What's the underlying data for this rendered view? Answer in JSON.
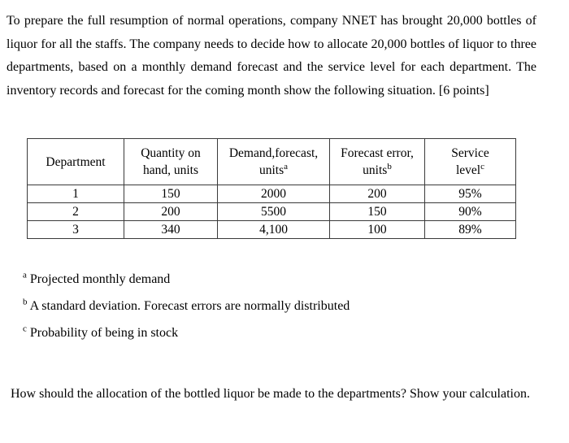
{
  "document": {
    "intro": "To prepare the full resumption of normal operations, company NNET has brought 20,000 bottles of liquor for all the staffs. The company needs to decide how to allocate 20,000 bottles of liquor to three departments, based on a monthly demand forecast and the service level for each department. The inventory records and forecast for the coming month show the following situation. [6 points]",
    "table": {
      "headers": [
        {
          "line1": "Department"
        },
        {
          "line1": "Quantity on",
          "line2": "hand, units"
        },
        {
          "line1": "Demand,forecast,",
          "line2": "units",
          "sup": "a"
        },
        {
          "line1": "Forecast error,",
          "line2": "units",
          "sup": "b"
        },
        {
          "line1": "Service",
          "line2": "level",
          "sup": "c"
        }
      ],
      "rows": [
        [
          "1",
          "150",
          "2000",
          "200",
          "95%"
        ],
        [
          "2",
          "200",
          "5500",
          "150",
          "90%"
        ],
        [
          "3",
          "340",
          "4,100",
          "100",
          "89%"
        ]
      ]
    },
    "footnotes": [
      {
        "sup": "a",
        "text": "Projected monthly demand"
      },
      {
        "sup": "b",
        "text": "A standard deviation. Forecast errors are normally distributed"
      },
      {
        "sup": "c",
        "text": "Probability of being in stock"
      }
    ],
    "question": "How should the allocation of the bottled liquor be made to the departments? Show your calculation."
  }
}
